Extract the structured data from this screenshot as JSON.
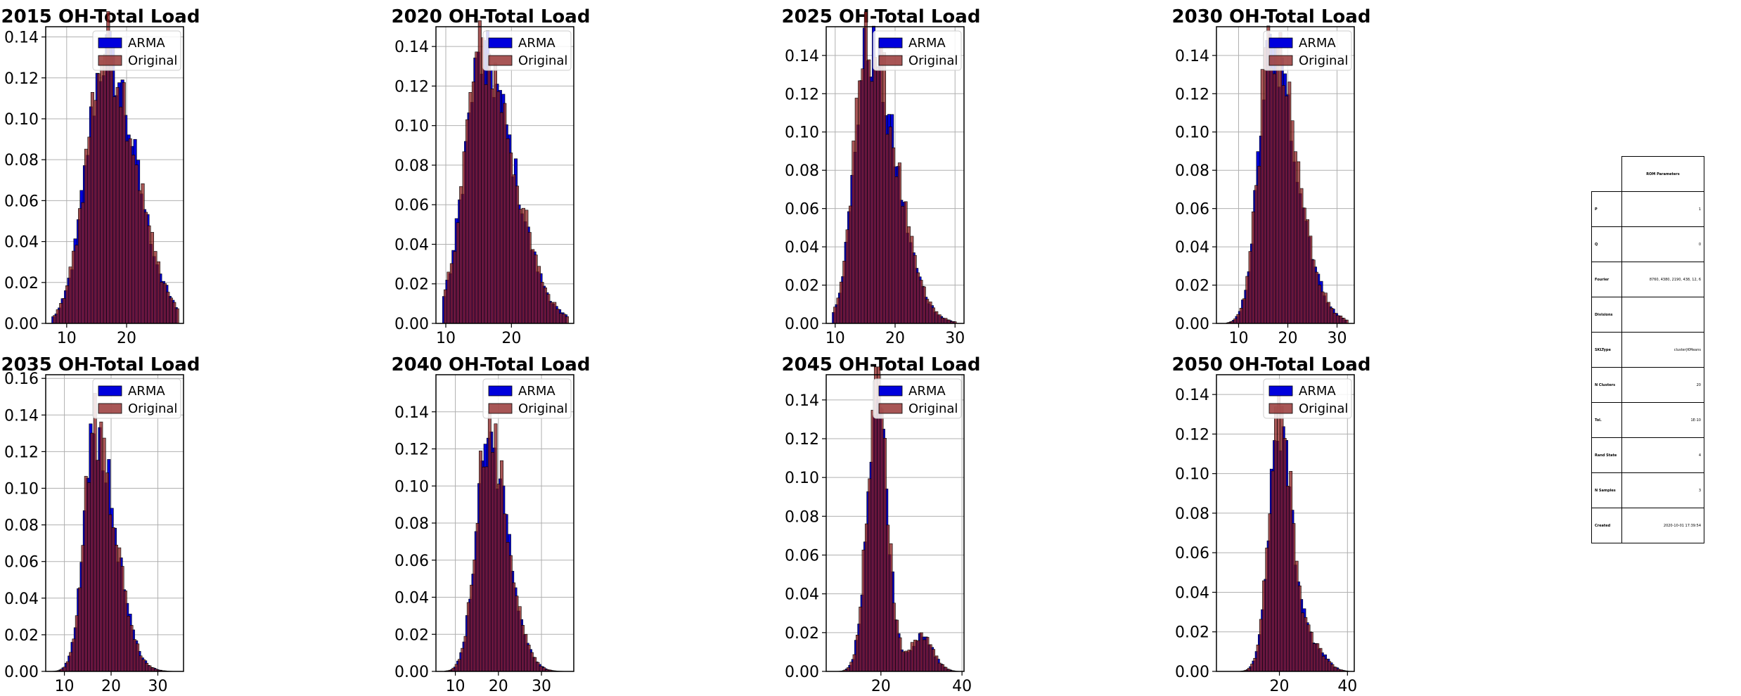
{
  "legend": {
    "arma": "ARMA",
    "original": "Original"
  },
  "colors": {
    "arma": "#0000dd",
    "original": "#8b1e1e",
    "original_alpha": 0.75,
    "grid": "#b0b0b0"
  },
  "chart_data": [
    {
      "type": "bar",
      "title": "2015 OH-Total Load",
      "xlim": [
        6.5,
        29.5
      ],
      "ylim": [
        0,
        0.145
      ],
      "xticks": [
        10,
        20
      ],
      "yticks": [
        0.0,
        0.02,
        0.04,
        0.06,
        0.08,
        0.1,
        0.12,
        0.14
      ],
      "dist": {
        "center": 16.5,
        "sigma_left": 3.2,
        "sigma_right": 5.0,
        "peak": 0.135,
        "min": 7.5,
        "max": 28.5
      },
      "grid": true,
      "legend_position": "upper center"
    },
    {
      "type": "bar",
      "title": "2020 OH-Total Load",
      "xlim": [
        8.5,
        29.5
      ],
      "ylim": [
        0,
        0.15
      ],
      "xticks": [
        10,
        20
      ],
      "yticks": [
        0.0,
        0.02,
        0.04,
        0.06,
        0.08,
        0.1,
        0.12,
        0.14
      ],
      "dist": {
        "center": 15.5,
        "sigma_left": 2.7,
        "sigma_right": 4.8,
        "peak": 0.137,
        "min": 9.5,
        "max": 28.5
      },
      "grid": true,
      "legend_position": "upper center"
    },
    {
      "type": "bar",
      "title": "2025 OH-Total Load",
      "xlim": [
        8.5,
        31.5
      ],
      "ylim": [
        0,
        0.155
      ],
      "xticks": [
        10,
        20,
        30
      ],
      "yticks": [
        0.0,
        0.02,
        0.04,
        0.06,
        0.08,
        0.1,
        0.12,
        0.14
      ],
      "dist": {
        "center": 15.5,
        "sigma_left": 2.3,
        "sigma_right": 4.5,
        "peak": 0.148,
        "min": 9.5,
        "max": 30.0
      },
      "grid": true,
      "legend_position": "upper center"
    },
    {
      "type": "bar",
      "title": "2030 OH-Total Load",
      "xlim": [
        5.5,
        33.5
      ],
      "ylim": [
        0,
        0.155
      ],
      "xticks": [
        10,
        20,
        30
      ],
      "yticks": [
        0.0,
        0.02,
        0.04,
        0.06,
        0.08,
        0.1,
        0.12,
        0.14
      ],
      "dist": {
        "center": 16.5,
        "sigma_left": 2.5,
        "sigma_right": 5.2,
        "peak": 0.145,
        "min": 7.5,
        "max": 32.0
      },
      "grid": true,
      "legend_position": "upper center"
    },
    {
      "type": "bar",
      "title": "2035 OH-Total Load",
      "xlim": [
        6.0,
        35.5
      ],
      "ylim": [
        0,
        0.162
      ],
      "xticks": [
        10,
        20,
        30
      ],
      "yticks": [
        0.0,
        0.02,
        0.04,
        0.06,
        0.08,
        0.1,
        0.12,
        0.14,
        0.16
      ],
      "dist": {
        "center": 16.5,
        "sigma_left": 2.3,
        "sigma_right": 4.3,
        "peak": 0.135,
        "min": 7.5,
        "max": 33.5
      },
      "grid": true,
      "legend_position": "upper center"
    },
    {
      "type": "bar",
      "title": "2040 OH-Total Load",
      "xlim": [
        5.5,
        37.5
      ],
      "ylim": [
        0,
        0.16
      ],
      "xticks": [
        10,
        20,
        30
      ],
      "yticks": [
        0.0,
        0.02,
        0.04,
        0.06,
        0.08,
        0.1,
        0.12,
        0.14
      ],
      "dist": {
        "center": 17.5,
        "sigma_left": 2.7,
        "sigma_right": 4.5,
        "peak": 0.13,
        "min": 7.5,
        "max": 35.5
      },
      "grid": true,
      "legend_position": "upper center"
    },
    {
      "type": "bar",
      "title": "2045 OH-Total Load",
      "xlim": [
        6.5,
        40.5
      ],
      "ylim": [
        0,
        0.153
      ],
      "xticks": [
        20,
        40
      ],
      "yticks": [
        0.0,
        0.02,
        0.04,
        0.06,
        0.08,
        0.1,
        0.12,
        0.14
      ],
      "dist": {
        "center": 19.0,
        "sigma_left": 2.4,
        "sigma_right": 2.6,
        "peak": 0.145,
        "min": 9.0,
        "max": 39.0,
        "bump_center": 30.0,
        "bump_sigma": 2.8,
        "bump_peak": 0.018
      },
      "grid": true,
      "legend_position": "upper center"
    },
    {
      "type": "bar",
      "title": "2050 OH-Total Load",
      "xlim": [
        1.5,
        42.0
      ],
      "ylim": [
        0,
        0.15
      ],
      "xticks": [
        20,
        40
      ],
      "yticks": [
        0.0,
        0.02,
        0.04,
        0.06,
        0.08,
        0.1,
        0.12,
        0.14
      ],
      "dist": {
        "center": 20.0,
        "sigma_left": 3.0,
        "sigma_right": 3.8,
        "peak": 0.127,
        "min": 5.0,
        "max": 40.0,
        "bump_center": 30.0,
        "bump_sigma": 3.5,
        "bump_peak": 0.012
      },
      "grid": true,
      "legend_position": "upper center"
    }
  ],
  "params_table": {
    "header": "ROM Parameters",
    "rows": [
      {
        "key": "P",
        "value": "1"
      },
      {
        "key": "Q",
        "value": "0"
      },
      {
        "key": "Fourier",
        "value": "8760, 4380, 2190, 438, 12, 6"
      },
      {
        "key": "Divisions",
        "value": ""
      },
      {
        "key": "SKLType",
        "value": "cluster|KMeans"
      },
      {
        "key": "N Clusters",
        "value": "20"
      },
      {
        "key": "Tol.",
        "value": "1E-10"
      },
      {
        "key": "Rand State",
        "value": "4"
      },
      {
        "key": "N Samples",
        "value": "3"
      },
      {
        "key": "Created",
        "value": "2020-10-01 17:39:54"
      }
    ]
  }
}
